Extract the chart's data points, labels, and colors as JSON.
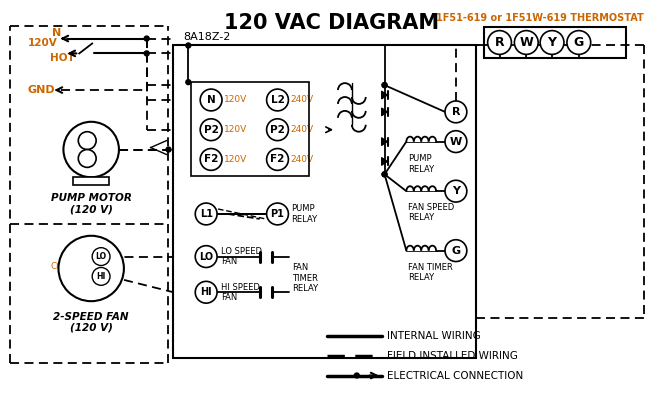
{
  "title": "120 VAC DIAGRAM",
  "bg_color": "#ffffff",
  "black": "#000000",
  "orange": "#cc6600",
  "thermostat_label": "1F51-619 or 1F51W-619 THERMOSTAT",
  "thermostat_terminals": [
    "R",
    "W",
    "Y",
    "G"
  ],
  "board_label": "8A18Z-2",
  "pump_motor_label": "PUMP MOTOR",
  "pump_motor_label2": "(120 V)",
  "fan_label": "2-SPEED FAN",
  "fan_label2": "(120 V)",
  "pump_relay_label": "PUMP\nRELAY",
  "fan_speed_relay_label": "FAN SPEED\nRELAY",
  "fan_timer_relay_label": "FAN TIMER\nRELAY",
  "lo_speed_fan": "LO SPEED\nFAN",
  "hi_speed_fan": "HI SPEED\nFAN",
  "fan_timer_relay2": "FAN\nTIMER\nRELAY",
  "legend_internal": "INTERNAL WIRING",
  "legend_field": "FIELD INSTALLED WIRING",
  "legend_elec": "ELECTRICAL CONNECTION",
  "figw": 6.7,
  "figh": 4.19,
  "dpi": 100
}
